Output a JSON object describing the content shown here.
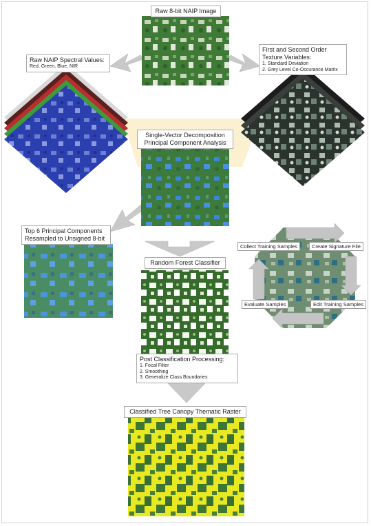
{
  "steps": {
    "raw_image": "Raw 8-bit NAIP Image",
    "spectral": {
      "title": "Raw NAIP Spectral Values:",
      "items": [
        "Red, Green, Blue, NIR"
      ]
    },
    "texture": {
      "title_line1": "First and Second Order",
      "title_line2": "Texture Variables:",
      "items": [
        "1. Standard Deviation",
        "2. Grey Level Co-Occurance Matrix"
      ]
    },
    "decomposition": {
      "line1": "Single-Vector Decomposition",
      "line2": "Principal Component Analysis"
    },
    "components": {
      "line1": "Top 6 Principal Components",
      "line2": "Resampled to Unsigned 8-bit"
    },
    "classifier": "Random Forest Classifier",
    "post": {
      "title": "Post Classification Processing:",
      "items": [
        "1. Focal Filter",
        "2. Smoothing",
        "3. Generalize Class Boundaries"
      ]
    },
    "output": "Classified Tree Canopy Thematic Raster"
  },
  "cycle": {
    "collect": "Collect Training Samples",
    "signature": "Create Signature File",
    "evaluate": "Evaluate Samples",
    "edit": "Edit Training Samples"
  },
  "colors": {
    "forest": "#3f7a37",
    "canopy_yellow": "#e9ea1f",
    "water_blue": "#3c86d8",
    "arrow_grey": "#c9c9c9",
    "highlight": "#fbf0cf"
  }
}
